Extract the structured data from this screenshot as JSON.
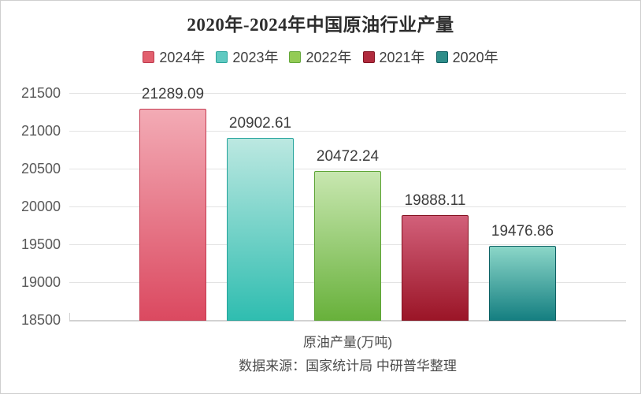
{
  "chart_data": {
    "type": "bar",
    "title": "2020年-2024年中国原油行业产量",
    "categories": [
      "2024年",
      "2023年",
      "2022年",
      "2021年",
      "2020年"
    ],
    "values": [
      21289.09,
      20902.61,
      20472.24,
      19888.11,
      19476.86
    ],
    "value_labels": [
      "21289.09",
      "20902.61",
      "20472.24",
      "19888.11",
      "19476.86"
    ],
    "xlabel": "原油产量(万吨)",
    "ylabel": "",
    "ylim": [
      18500,
      21500
    ],
    "yticks": [
      21500,
      21000,
      20500,
      20000,
      19500,
      19000,
      18500
    ],
    "grid": true,
    "legend_position": "top",
    "source": "数据来源：国家统计局 中研普华整理",
    "bar_styles": [
      {
        "gradient_top": "#F3ABB5",
        "gradient_bottom": "#DB4960",
        "border": "#C53E53",
        "legend_fill": "#E2606E",
        "legend_border": "#BE3A4E"
      },
      {
        "gradient_top": "#BCE8E1",
        "gradient_bottom": "#2FBDB0",
        "border": "#23A39B",
        "legend_fill": "#5FC9C1",
        "legend_border": "#2BA49C"
      },
      {
        "gradient_top": "#C8E7B0",
        "gradient_bottom": "#68B13B",
        "border": "#5CA335",
        "legend_fill": "#93CB55",
        "legend_border": "#64A73A"
      },
      {
        "gradient_top": "#D2607A",
        "gradient_bottom": "#9B1527",
        "border": "#84101F",
        "legend_fill": "#B02A3D",
        "legend_border": "#821322"
      },
      {
        "gradient_top": "#8BD6C8",
        "gradient_bottom": "#157F81",
        "border": "#0F6165",
        "legend_fill": "#2E8D89",
        "legend_border": "#0F5F62"
      }
    ]
  }
}
